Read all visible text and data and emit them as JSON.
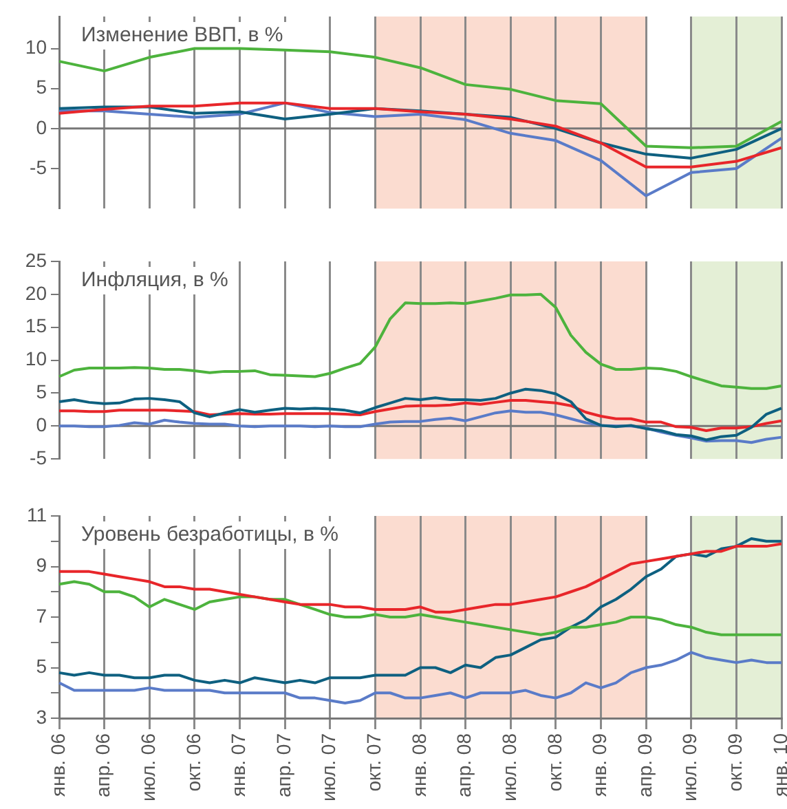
{
  "chart_data": [
    {
      "type": "line",
      "title": "Изменение ВВП, в %",
      "categories": [
        "янв. 06",
        null,
        null,
        "апр. 06",
        null,
        null,
        "июл. 06",
        null,
        null,
        "окт. 06",
        null,
        null,
        "янв. 07",
        null,
        null,
        "апр. 07",
        null,
        null,
        "июл. 07",
        null,
        null,
        "окт. 07",
        null,
        null,
        "янв. 08",
        null,
        null,
        "апр. 08",
        null,
        null,
        "июл. 08",
        null,
        null,
        "окт. 08",
        null,
        null,
        "янв. 09",
        null,
        null,
        "апр. 09",
        null,
        null,
        "июл. 09",
        null,
        null,
        "окт. 09",
        null,
        null,
        "янв. 10"
      ],
      "series": [
        {
          "color": "#4db33d",
          "x": [
            "янв. 06",
            "апр. 06",
            "июл. 06",
            "окт. 06",
            "янв. 07",
            "апр. 07",
            "июл. 07",
            "окт. 07",
            "янв. 08",
            "апр. 08",
            "июл. 08",
            "окт. 08",
            "янв. 09",
            "апр. 09",
            "июл. 09",
            "окт. 09",
            "янв. 10"
          ],
          "values": [
            8.4,
            7.2,
            8.9,
            10,
            10,
            9.8,
            9.6,
            8.9,
            7.6,
            5.5,
            4.9,
            3.5,
            3.1,
            -2.2,
            -2.4,
            -2.2,
            0.9
          ]
        },
        {
          "color": "#e8262a",
          "x": [
            "янв. 06",
            "апр. 06",
            "июл. 06",
            "окт. 06",
            "янв. 07",
            "апр. 07",
            "июл. 07",
            "окт. 07",
            "янв. 08",
            "апр. 08",
            "июл. 08",
            "окт. 08",
            "янв. 09",
            "апр. 09",
            "июл. 09",
            "окт. 09",
            "янв. 10"
          ],
          "values": [
            1.9,
            2.4,
            2.8,
            2.8,
            3.2,
            3.2,
            2.5,
            2.5,
            2.1,
            1.8,
            1.2,
            0.3,
            -1.8,
            -4.8,
            -4.8,
            -4.1,
            -2.4
          ]
        },
        {
          "color": "#0e6080",
          "x": [
            "янв. 06",
            "апр. 06",
            "июл. 06",
            "окт. 06",
            "янв. 07",
            "апр. 07",
            "июл. 07",
            "окт. 07",
            "янв. 08",
            "апр. 08",
            "июл. 08",
            "окт. 08",
            "янв. 09",
            "апр. 09",
            "июл. 09",
            "окт. 09",
            "янв. 10"
          ],
          "values": [
            2.5,
            2.7,
            2.7,
            1.9,
            2.1,
            1.2,
            1.8,
            2.5,
            2.2,
            1.8,
            1.4,
            0,
            -1.8,
            -3.2,
            -3.7,
            -2.6,
            0
          ]
        },
        {
          "color": "#5a7bc8",
          "x": [
            "янв. 06",
            "апр. 06",
            "июл. 06",
            "окт. 06",
            "янв. 07",
            "апр. 07",
            "июл. 07",
            "окт. 07",
            "янв. 08",
            "апр. 08",
            "июл. 08",
            "окт. 08",
            "янв. 09",
            "апр. 09",
            "июл. 09",
            "окт. 09",
            "янв. 10"
          ],
          "values": [
            2.2,
            2.2,
            1.8,
            1.4,
            1.8,
            3.2,
            2.0,
            1.5,
            1.8,
            1.1,
            -0.6,
            -1.5,
            -4.0,
            -8.4,
            -5.5,
            -5.0,
            -1.2
          ]
        }
      ],
      "ylim": [
        -10,
        14
      ],
      "yticks": [
        -5,
        0,
        5,
        10
      ],
      "grid": "x",
      "tick_labels": "y",
      "ref_lines": [
        {
          "axis": "y",
          "value": 0,
          "color": "#777777"
        }
      ],
      "bands": [
        {
          "axis": "x",
          "from": "окт. 07",
          "to": "апр. 09",
          "color": "#fbdcd0"
        },
        {
          "axis": "x",
          "from": "июл. 09",
          "to": "янв. 10",
          "color": "#e4efd6"
        }
      ]
    },
    {
      "type": "line",
      "title": "Инфляция, в %",
      "categories": [
        "янв. 06",
        null,
        null,
        "апр. 06",
        null,
        null,
        "июл. 06",
        null,
        null,
        "окт. 06",
        null,
        null,
        "янв. 07",
        null,
        null,
        "апр. 07",
        null,
        null,
        "июл. 07",
        null,
        null,
        "окт. 07",
        null,
        null,
        "янв. 08",
        null,
        null,
        "апр. 08",
        null,
        null,
        "июл. 08",
        null,
        null,
        "окт. 08",
        null,
        null,
        "янв. 09",
        null,
        null,
        "апр. 09",
        null,
        null,
        "июл. 09",
        null,
        null,
        "окт. 09",
        null,
        null,
        "янв. 10"
      ],
      "series": [
        {
          "color": "#4db33d",
          "values": [
            7.5,
            8.5,
            8.8,
            8.8,
            8.8,
            8.9,
            8.8,
            8.6,
            8.6,
            8.4,
            8.1,
            8.3,
            8.3,
            8.4,
            7.8,
            7.7,
            7.6,
            7.5,
            8.0,
            8.8,
            9.5,
            12.0,
            16.3,
            18.7,
            18.6,
            18.6,
            18.7,
            18.6,
            19.0,
            19.4,
            19.9,
            19.9,
            20.0,
            18.0,
            13.8,
            11.2,
            9.4,
            8.6,
            8.6,
            8.8,
            8.7,
            8.3,
            7.5,
            6.8,
            6.1,
            5.9,
            5.7,
            5.7,
            6.1
          ]
        },
        {
          "color": "#0e6080",
          "values": [
            3.7,
            4.0,
            3.6,
            3.4,
            3.5,
            4.1,
            4.2,
            4.0,
            3.7,
            2.0,
            1.4,
            2.0,
            2.5,
            2.1,
            2.4,
            2.7,
            2.6,
            2.7,
            2.6,
            2.4,
            2.0,
            2.8,
            3.5,
            4.2,
            4.0,
            4.3,
            4.0,
            4.0,
            3.9,
            4.2,
            5.0,
            5.6,
            5.4,
            4.9,
            3.7,
            1.1,
            0.1,
            -0.1,
            0.1,
            -0.4,
            -0.7,
            -1.3,
            -1.5,
            -2.1,
            -1.6,
            -1.4,
            -0.2,
            1.8,
            2.7
          ]
        },
        {
          "color": "#e8262a",
          "values": [
            2.3,
            2.3,
            2.2,
            2.2,
            2.4,
            2.4,
            2.4,
            2.4,
            2.3,
            2.2,
            1.7,
            1.8,
            1.9,
            1.8,
            1.8,
            1.9,
            1.9,
            1.9,
            1.9,
            1.8,
            1.7,
            2.2,
            2.6,
            3.0,
            3.1,
            3.1,
            3.2,
            3.5,
            3.3,
            3.6,
            3.9,
            3.9,
            3.7,
            3.5,
            3.1,
            2.1,
            1.5,
            1.1,
            1.1,
            0.6,
            0.6,
            -0.1,
            -0.2,
            -0.7,
            -0.3,
            -0.3,
            -0.1,
            0.4,
            0.8
          ]
        },
        {
          "color": "#5a7bc8",
          "values": [
            0.0,
            0.0,
            -0.1,
            -0.1,
            0.1,
            0.5,
            0.3,
            0.9,
            0.6,
            0.4,
            0.3,
            0.3,
            0.0,
            -0.1,
            0.0,
            0.0,
            0.0,
            -0.1,
            0.0,
            -0.1,
            -0.1,
            0.3,
            0.6,
            0.7,
            0.7,
            1.0,
            1.2,
            0.8,
            1.4,
            2.0,
            2.3,
            2.1,
            2.1,
            1.7,
            1.1,
            0.5,
            0.1,
            0.0,
            0.0,
            -0.3,
            -0.9,
            -1.4,
            -1.8,
            -2.3,
            -2.2,
            -2.2,
            -2.5,
            -2.0,
            -1.7
          ]
        }
      ],
      "ylim": [
        -5,
        25
      ],
      "yticks": [
        -5,
        0,
        5,
        10,
        15,
        20,
        25
      ],
      "grid": "x",
      "tick_labels": "y",
      "ref_lines": [
        {
          "axis": "y",
          "value": 0,
          "color": "#777777"
        }
      ],
      "bands": [
        {
          "axis": "x",
          "from": "окт. 07",
          "to": "апр. 09",
          "color": "#fbdcd0"
        },
        {
          "axis": "x",
          "from": "июл. 09",
          "to": "янв. 10",
          "color": "#e4efd6"
        }
      ]
    },
    {
      "type": "line",
      "title": "Уровень безработицы, в %",
      "categories": [
        "янв. 06",
        null,
        null,
        "апр. 06",
        null,
        null,
        "июл. 06",
        null,
        null,
        "окт. 06",
        null,
        null,
        "янв. 07",
        null,
        null,
        "апр. 07",
        null,
        null,
        "июл. 07",
        null,
        null,
        "окт. 07",
        null,
        null,
        "янв. 08",
        null,
        null,
        "апр. 08",
        null,
        null,
        "июл. 08",
        null,
        null,
        "окт. 08",
        null,
        null,
        "янв. 09",
        null,
        null,
        "апр. 09",
        null,
        null,
        "июл. 09",
        null,
        null,
        "окт. 09",
        null,
        null,
        "янв. 10"
      ],
      "series": [
        {
          "color": "#e8262a",
          "values": [
            8.8,
            8.8,
            8.8,
            8.7,
            8.6,
            8.5,
            8.4,
            8.2,
            8.2,
            8.1,
            8.1,
            8.0,
            7.9,
            7.8,
            7.7,
            7.6,
            7.5,
            7.5,
            7.5,
            7.4,
            7.4,
            7.3,
            7.3,
            7.3,
            7.4,
            7.2,
            7.2,
            7.3,
            7.4,
            7.5,
            7.5,
            7.6,
            7.7,
            7.8,
            8.0,
            8.2,
            8.5,
            8.8,
            9.1,
            9.2,
            9.3,
            9.4,
            9.5,
            9.6,
            9.6,
            9.8,
            9.8,
            9.8,
            9.9
          ]
        },
        {
          "color": "#4db33d",
          "values": [
            8.3,
            8.4,
            8.3,
            8.0,
            8.0,
            7.8,
            7.4,
            7.7,
            7.5,
            7.3,
            7.6,
            7.7,
            7.8,
            7.8,
            7.7,
            7.7,
            7.5,
            7.3,
            7.1,
            7.0,
            7.0,
            7.1,
            7.0,
            7.0,
            7.1,
            7.0,
            6.9,
            6.8,
            6.7,
            6.6,
            6.5,
            6.4,
            6.3,
            6.4,
            6.6,
            6.6,
            6.7,
            6.8,
            7.0,
            7.0,
            6.9,
            6.7,
            6.6,
            6.4,
            6.3,
            6.3,
            6.3,
            6.3,
            6.3
          ]
        },
        {
          "color": "#0e6080",
          "values": [
            4.8,
            4.7,
            4.8,
            4.7,
            4.7,
            4.6,
            4.6,
            4.7,
            4.7,
            4.5,
            4.4,
            4.5,
            4.4,
            4.6,
            4.5,
            4.4,
            4.5,
            4.4,
            4.6,
            4.6,
            4.6,
            4.7,
            4.7,
            4.7,
            5.0,
            5.0,
            4.8,
            5.1,
            5.0,
            5.4,
            5.5,
            5.8,
            6.1,
            6.2,
            6.6,
            6.9,
            7.4,
            7.7,
            8.1,
            8.6,
            8.9,
            9.4,
            9.5,
            9.4,
            9.7,
            9.8,
            10.1,
            10.0,
            10.0
          ]
        },
        {
          "color": "#5a7bc8",
          "values": [
            4.4,
            4.1,
            4.1,
            4.1,
            4.1,
            4.1,
            4.2,
            4.1,
            4.1,
            4.1,
            4.1,
            4.0,
            4.0,
            4.0,
            4.0,
            4.0,
            3.8,
            3.8,
            3.7,
            3.6,
            3.7,
            4.0,
            4.0,
            3.8,
            3.8,
            3.9,
            4.0,
            3.8,
            4.0,
            4.0,
            4.0,
            4.1,
            3.9,
            3.8,
            4.0,
            4.4,
            4.2,
            4.4,
            4.8,
            5.0,
            5.1,
            5.3,
            5.6,
            5.4,
            5.3,
            5.2,
            5.3,
            5.2,
            5.2
          ]
        }
      ],
      "ylim": [
        3,
        11
      ],
      "yticks": [
        3,
        {
          "value": 4,
          "label": null
        },
        5,
        {
          "value": 6,
          "label": null
        },
        7,
        {
          "value": 8,
          "label": null
        },
        9,
        {
          "value": 10,
          "label": null
        },
        11
      ],
      "grid": "x",
      "bands": [
        {
          "axis": "x",
          "from": "окт. 07",
          "to": "апр. 09",
          "color": "#fbdcd0"
        },
        {
          "axis": "x",
          "from": "июл. 09",
          "to": "янв. 10",
          "color": "#e4efd6"
        }
      ]
    }
  ]
}
